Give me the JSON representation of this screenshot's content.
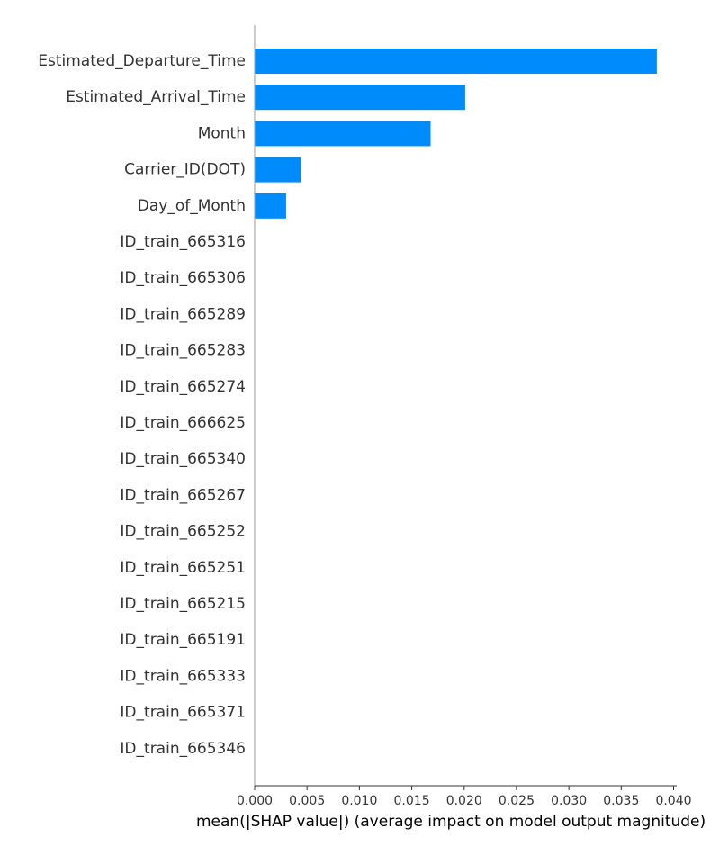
{
  "chart_data": {
    "type": "bar",
    "orientation": "horizontal",
    "categories": [
      "Estimated_Departure_Time",
      "Estimated_Arrival_Time",
      "Month",
      "Carrier_ID(DOT)",
      "Day_of_Month",
      "ID_train_665316",
      "ID_train_665306",
      "ID_train_665289",
      "ID_train_665283",
      "ID_train_665274",
      "ID_train_666625",
      "ID_train_665340",
      "ID_train_665267",
      "ID_train_665252",
      "ID_train_665251",
      "ID_train_665215",
      "ID_train_665191",
      "ID_train_665333",
      "ID_train_665371",
      "ID_train_665346"
    ],
    "values": [
      0.0384,
      0.0201,
      0.0168,
      0.0044,
      0.003,
      0,
      0,
      0,
      0,
      0,
      0,
      0,
      0,
      0,
      0,
      0,
      0,
      0,
      0,
      0
    ],
    "xlabel": "mean(|SHAP value|) (average impact on model output magnitude)",
    "xlim": [
      0,
      0.0403
    ],
    "xticks": [
      0.0,
      0.005,
      0.01,
      0.015,
      0.02,
      0.025,
      0.03,
      0.035,
      0.04
    ],
    "xtick_labels": [
      "0.000",
      "0.005",
      "0.010",
      "0.015",
      "0.020",
      "0.025",
      "0.030",
      "0.035",
      "0.040"
    ],
    "bar_color": "#008bfb",
    "grid": false,
    "legend": false
  }
}
